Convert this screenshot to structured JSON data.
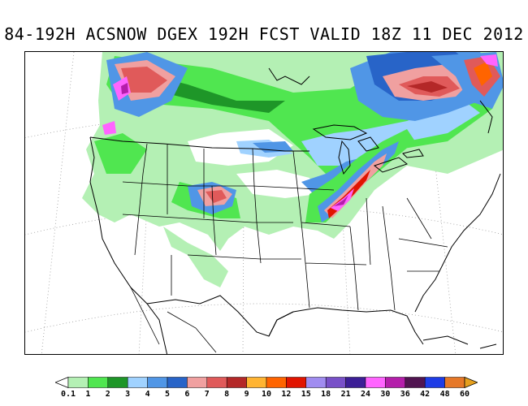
{
  "map": {
    "title": "84-192H ACSNOW DGEX 192H FCST VALID 18Z 11 DEC 2012"
  },
  "legend": {
    "labels": [
      "0.1",
      "1",
      "2",
      "3",
      "4",
      "5",
      "6",
      "7",
      "8",
      "9",
      "10",
      "12",
      "15",
      "18",
      "21",
      "24",
      "30",
      "36",
      "42",
      "48",
      "60"
    ],
    "colors": [
      "#b4f0b4",
      "#50e650",
      "#1e9628",
      "#a0d2ff",
      "#5096e6",
      "#2864c8",
      "#f0a0a0",
      "#e05a5a",
      "#b42828",
      "#ffb432",
      "#ff6400",
      "#e11400",
      "#a08cf0",
      "#7850c8",
      "#3c1e96",
      "#ff64ff",
      "#b41eaa",
      "#501450",
      "#1e3ce6",
      "#e67828"
    ],
    "over_color": "#e6a01e",
    "under_color": "#ffffff"
  }
}
